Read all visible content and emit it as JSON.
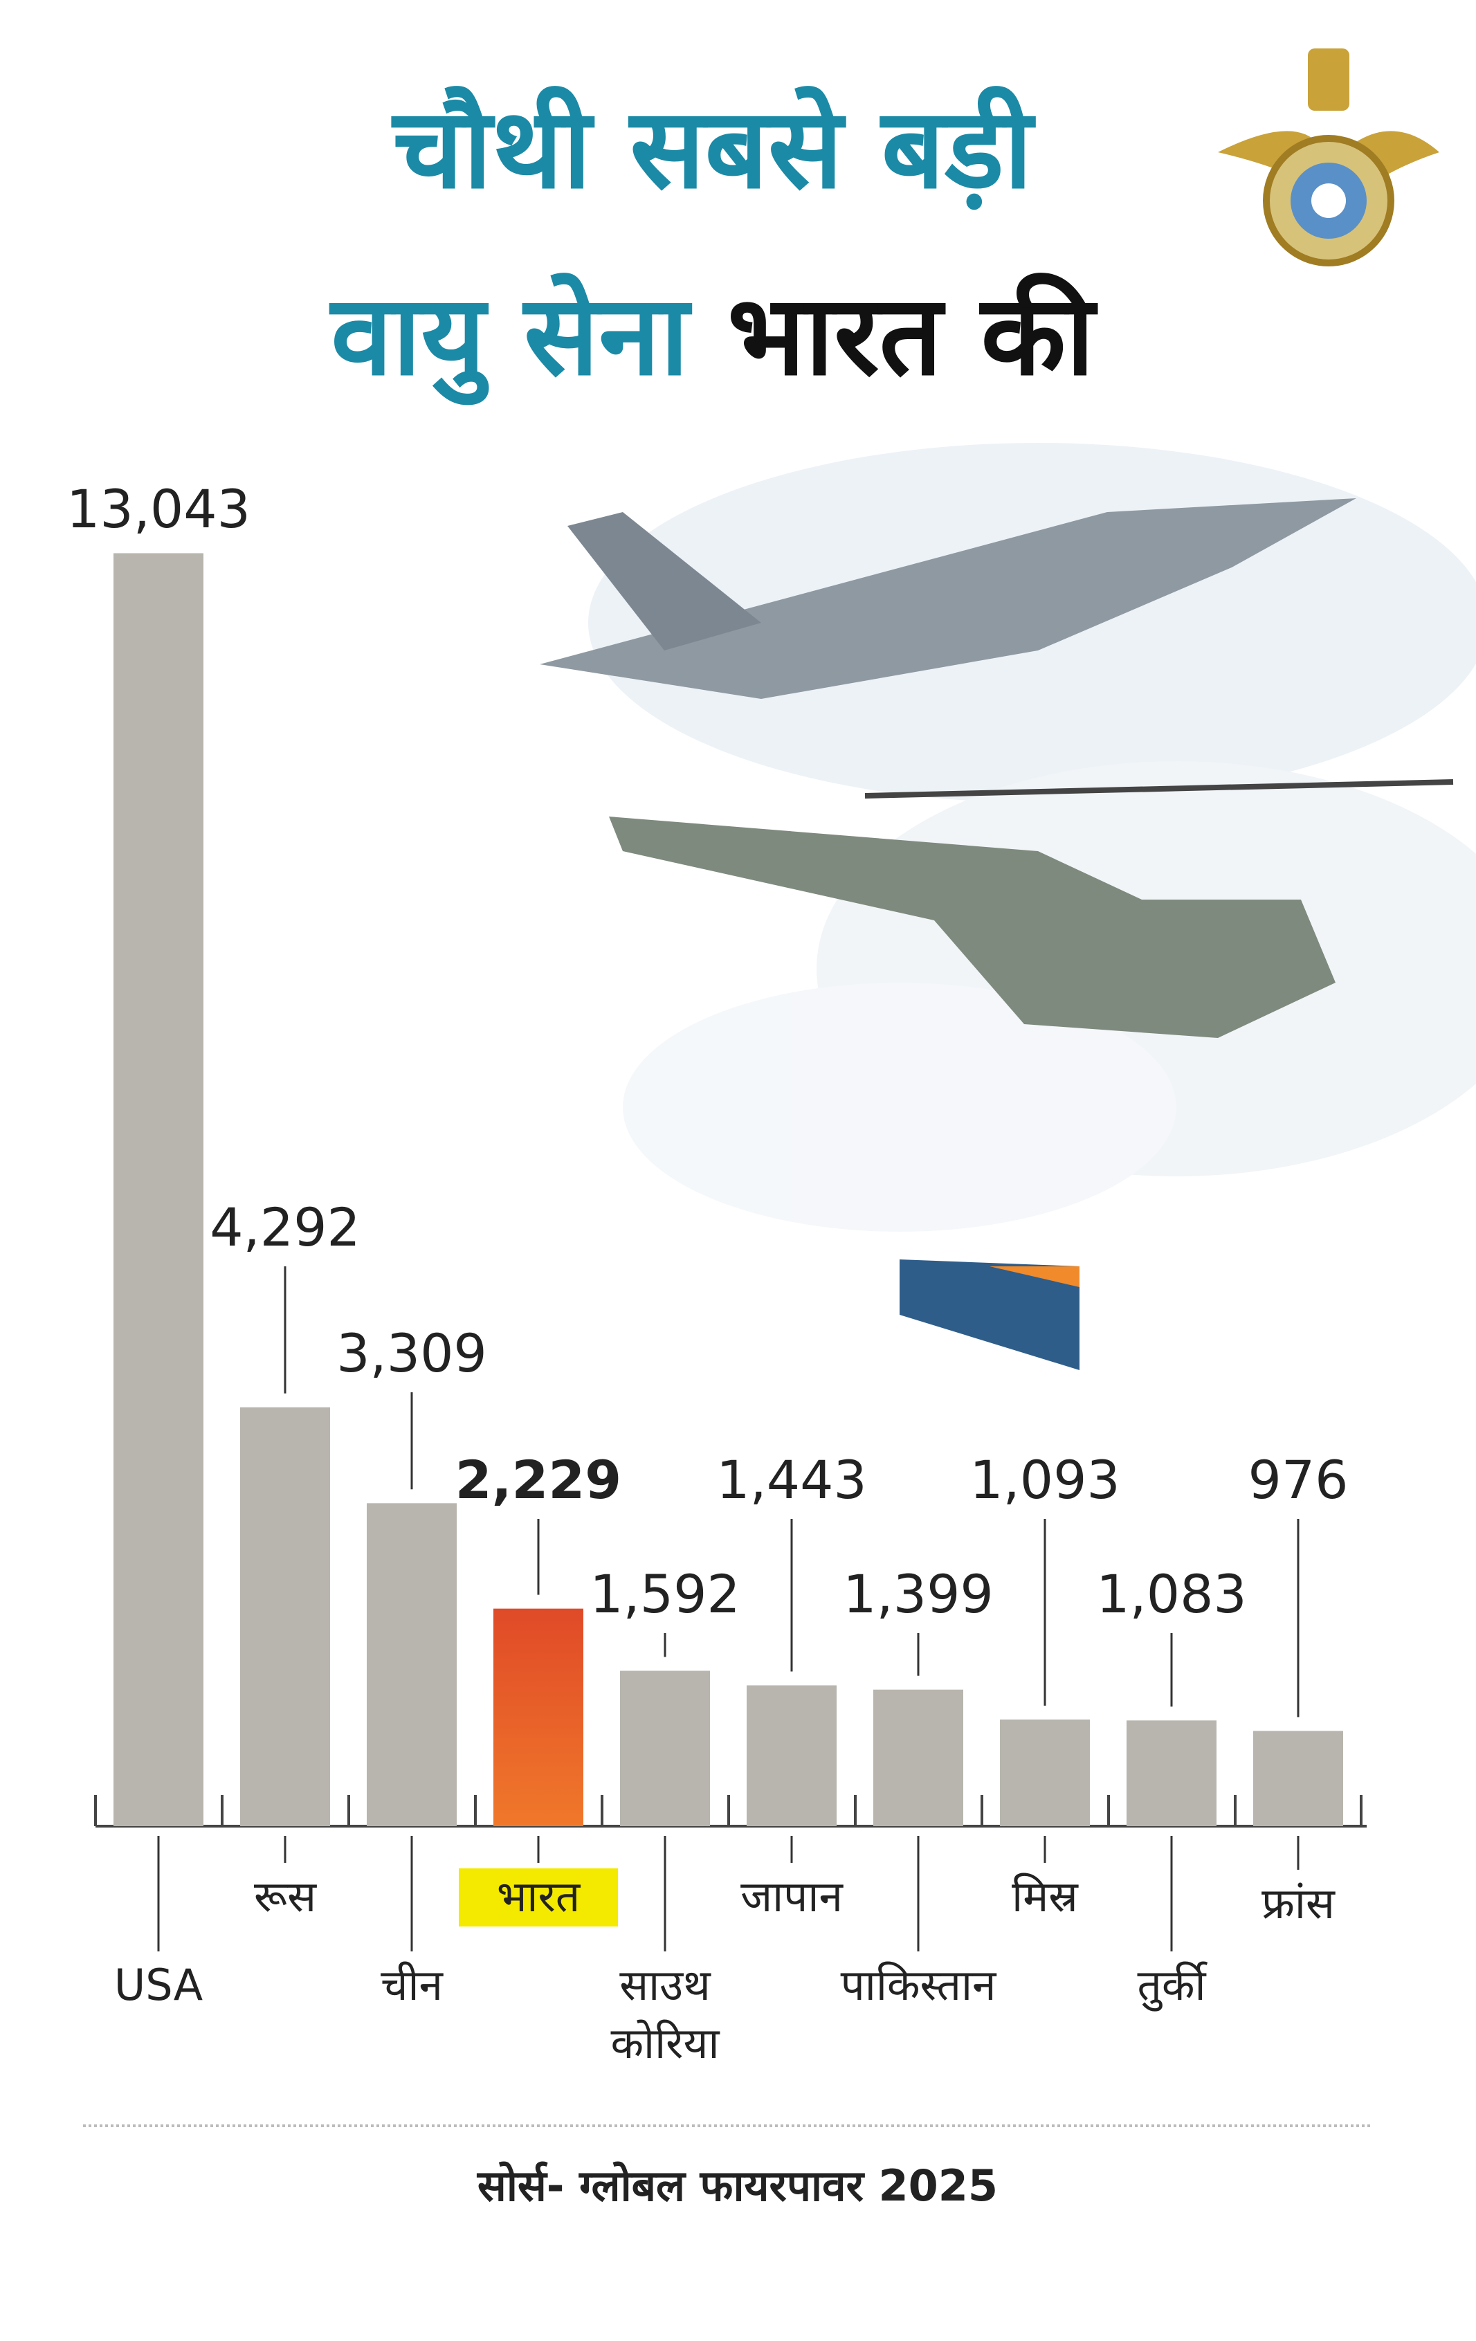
{
  "chart_data": {
    "type": "bar",
    "title_lines": [
      [
        "चौथी सबसे बड़ी"
      ],
      [
        "वायु सेना",
        "भारत की"
      ]
    ],
    "title_colors": [
      [
        "#1b8aa6"
      ],
      [
        "#1b8aa6",
        "#111111"
      ]
    ],
    "categories": [
      "USA",
      "रूस",
      "चीन",
      "भारत",
      "साउथ कोरिया",
      "जापान",
      "पाकिस्तान",
      "मिस्र",
      "तुर्की",
      "फ्रांस"
    ],
    "values": [
      13043,
      4292,
      3309,
      2229,
      1592,
      1443,
      1399,
      1093,
      1083,
      976
    ],
    "value_labels": [
      "13,043",
      "4,292",
      "3,309",
      "2,229",
      "1,592",
      "1,443",
      "1,399",
      "1,093",
      "1,083",
      "976"
    ],
    "colors": [
      "#b7b5ad",
      "#b7b5ad",
      "#b7b5ad",
      "#e2522a",
      "#b7b5ad",
      "#b7b5ad",
      "#b7b5ad",
      "#b7b5ad",
      "#b7b5ad",
      "#b7b5ad"
    ],
    "highlight_index": 3,
    "highlight_color": "#f4ea00",
    "ylim": [
      0,
      13500
    ],
    "source": "सोर्स- ग्लोबल फायरपावर 2025"
  }
}
